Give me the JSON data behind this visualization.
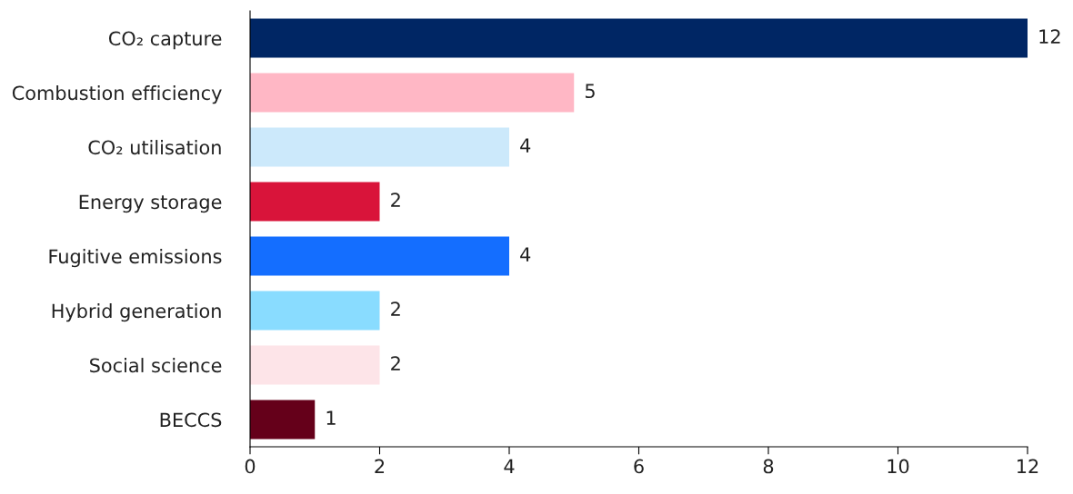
{
  "chart_data": {
    "type": "bar",
    "orientation": "horizontal",
    "categories": [
      "CO₂ capture",
      "Combustion efficiency",
      "CO₂ utilisation",
      "Energy storage",
      "Fugitive emissions",
      "Hybrid generation",
      "Social science",
      "BECCS"
    ],
    "values": [
      12,
      5,
      4,
      2,
      4,
      2,
      2,
      1
    ],
    "colors": [
      "#002664",
      "#ffb7c5",
      "#cce9fb",
      "#d9143a",
      "#146eff",
      "#89dcff",
      "#fde4e8",
      "#65001a"
    ],
    "xlim": [
      0,
      12
    ],
    "xticks": [
      0,
      2,
      4,
      6,
      8,
      10,
      12
    ],
    "grid": false,
    "data_labels": true
  }
}
